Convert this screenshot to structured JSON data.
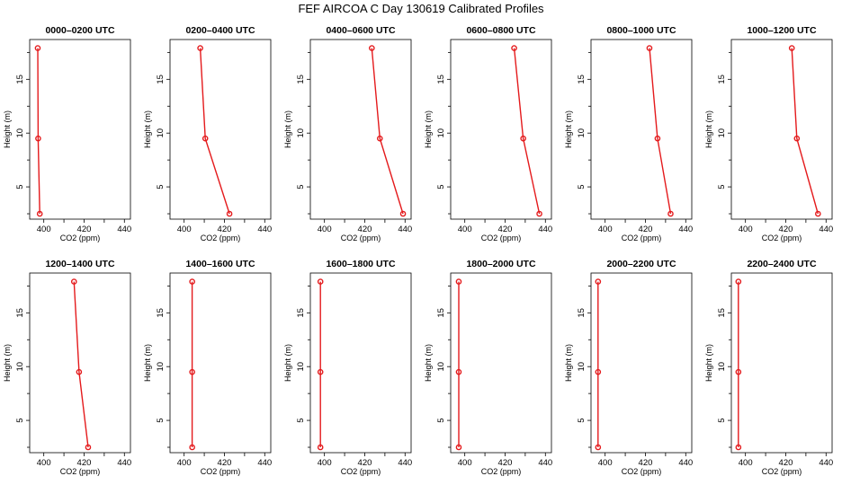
{
  "title": "FEF AIRCOA C  Day 130619  Calibrated Profiles",
  "colors": {
    "profile": "#e41a1c",
    "frame": "#000000",
    "background": "#ffffff"
  },
  "chart_data": {
    "type": "line",
    "xlabel": "CO2 (ppm)",
    "ylabel": "Height (m)",
    "xlim": [
      393,
      443
    ],
    "ylim": [
      2,
      18.7
    ],
    "xticks": [
      400,
      420,
      440
    ],
    "yticks": [
      5,
      10,
      15
    ],
    "heights": [
      2.5,
      9.5,
      17.9
    ],
    "panels": [
      {
        "label": "0000–0200 UTC",
        "values": [
          398.0,
          397.2,
          397.0
        ]
      },
      {
        "label": "0200–0400 UTC",
        "values": [
          422.5,
          410.5,
          408.0
        ]
      },
      {
        "label": "0400–0600 UTC",
        "values": [
          439.0,
          427.5,
          423.5
        ]
      },
      {
        "label": "0600–0800 UTC",
        "values": [
          437.0,
          429.0,
          424.5
        ]
      },
      {
        "label": "0800–1000 UTC",
        "values": [
          432.5,
          426.0,
          422.0
        ]
      },
      {
        "label": "1000–1200 UTC",
        "values": [
          436.0,
          425.5,
          423.0
        ]
      },
      {
        "label": "1200–1400 UTC",
        "values": [
          422.0,
          417.5,
          415.0
        ]
      },
      {
        "label": "1400–1600 UTC",
        "values": [
          404.0,
          404.0,
          404.0
        ]
      },
      {
        "label": "1600–1800 UTC",
        "values": [
          398.0,
          398.0,
          398.0
        ]
      },
      {
        "label": "1800–2000 UTC",
        "values": [
          397.0,
          397.0,
          397.0
        ]
      },
      {
        "label": "2000–2200 UTC",
        "values": [
          396.5,
          396.5,
          396.5
        ]
      },
      {
        "label": "2200–2400 UTC",
        "values": [
          396.5,
          396.5,
          396.5
        ]
      }
    ]
  }
}
